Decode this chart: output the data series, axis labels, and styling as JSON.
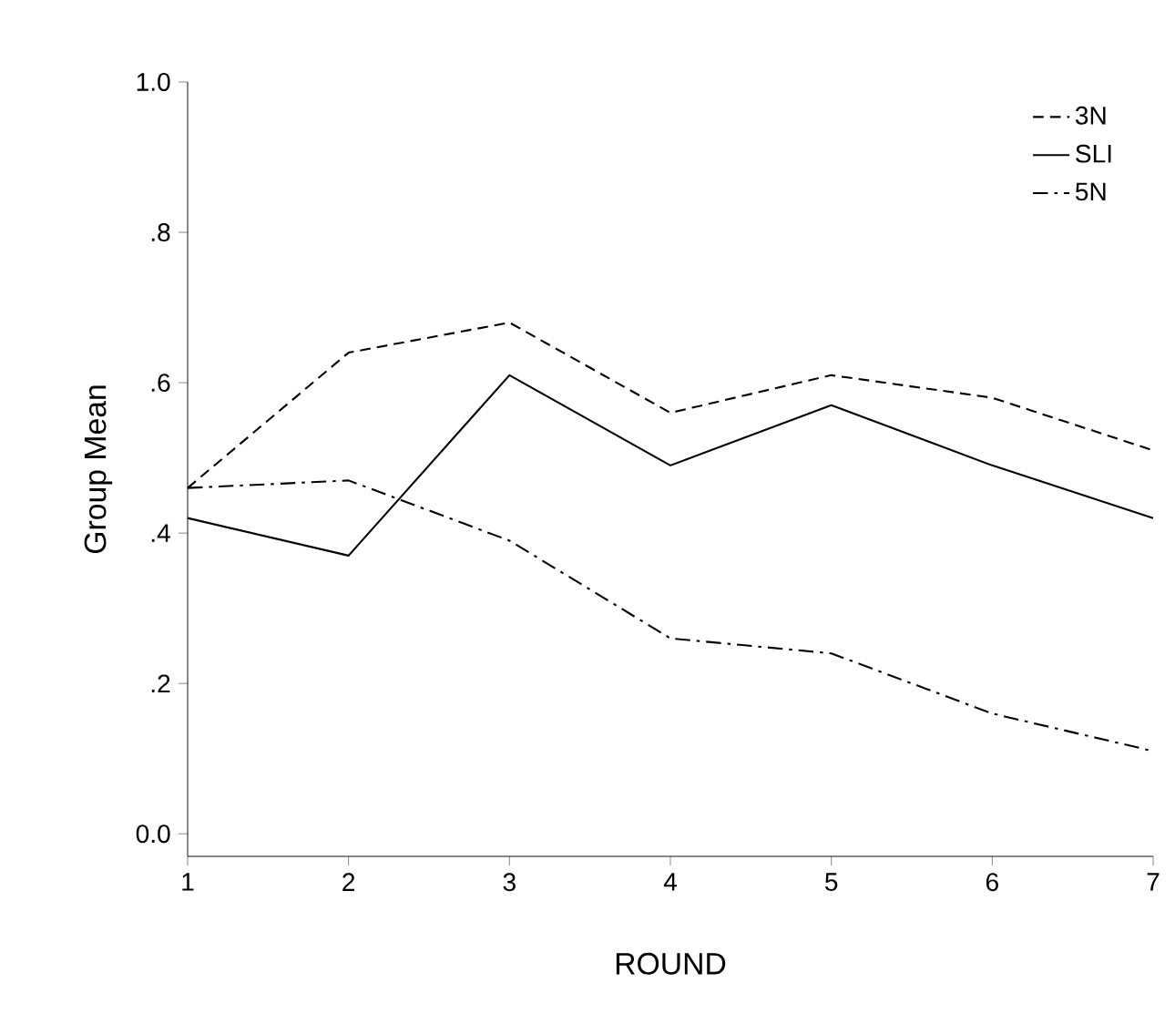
{
  "chart_data": {
    "type": "line",
    "xlabel": "ROUND",
    "ylabel": "Group Mean",
    "x": [
      1,
      2,
      3,
      4,
      5,
      6,
      7
    ],
    "xlim": [
      1,
      7
    ],
    "xticks": [
      1,
      2,
      3,
      4,
      5,
      6,
      7
    ],
    "ylim": [
      -0.03,
      1.0
    ],
    "yticks": [
      {
        "value": 0,
        "label": "0.0"
      },
      {
        "value": 0.2,
        "label": ".2"
      },
      {
        "value": 0.4,
        "label": ".4"
      },
      {
        "value": 0.6,
        "label": ".6"
      },
      {
        "value": 0.8,
        "label": ".8"
      },
      {
        "value": 1.0,
        "label": "1.0"
      }
    ],
    "legend": "top right",
    "grid": false,
    "marker": "none",
    "series": [
      {
        "name": "3N",
        "color": "#000000",
        "line_style": "dashed",
        "values": [
          0.46,
          0.64,
          0.68,
          0.56,
          0.61,
          0.58,
          0.51
        ]
      },
      {
        "name": "SLI",
        "color": "#000000",
        "line_style": "solid",
        "values": [
          0.42,
          0.37,
          0.61,
          0.49,
          0.57,
          0.49,
          0.42
        ]
      },
      {
        "name": "5N",
        "color": "#000000",
        "line_style": "dashdot",
        "values": [
          0.46,
          0.47,
          0.39,
          0.26,
          0.24,
          0.16,
          0.11
        ]
      }
    ]
  }
}
